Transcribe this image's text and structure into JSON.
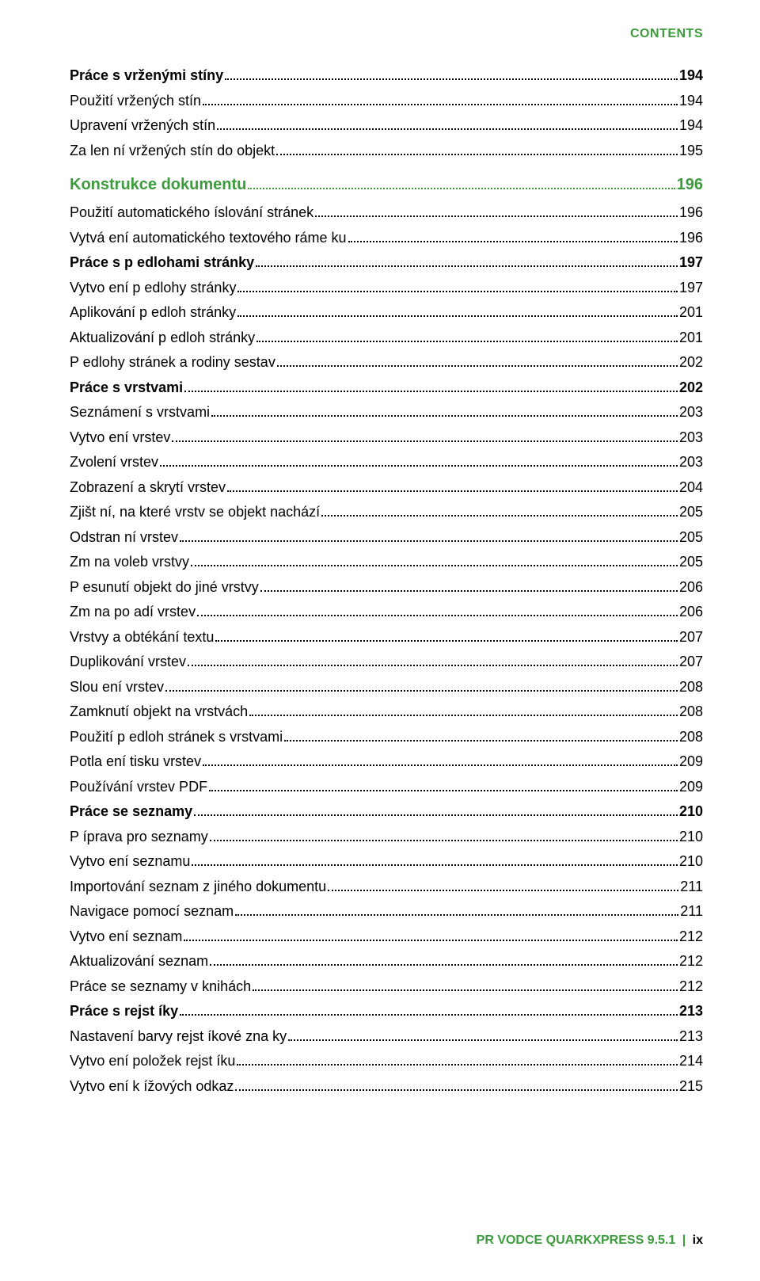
{
  "header": {
    "label": "CONTENTS"
  },
  "colors": {
    "accent": "#3c9b3c",
    "text": "#000000",
    "background": "#ffffff",
    "dot": "#000000"
  },
  "typography": {
    "body_fontsize": 18,
    "heading_fontsize": 20,
    "header_fontsize": 16,
    "footer_fontsize": 16,
    "font_family": "Arial, Helvetica, sans-serif",
    "line_height": 1.75
  },
  "toc": [
    {
      "label": "Práce s vrženými stíny",
      "page": "194",
      "style": "bold"
    },
    {
      "label": "Použití vržených stín",
      "page": "194",
      "style": "normal"
    },
    {
      "label": "Upravení vržených stín",
      "page": "194",
      "style": "normal"
    },
    {
      "label": "Za len ní vržených stín  do objekt",
      "page": "195",
      "style": "normal"
    },
    {
      "label": "Konstrukce dokumentu",
      "page": "196",
      "style": "heading"
    },
    {
      "label": "Použití automatického  íslování stránek",
      "page": "196",
      "style": "normal"
    },
    {
      "label": "Vytvá ení automatického textového ráme ku",
      "page": "196",
      "style": "normal"
    },
    {
      "label": "Práce s p edlohami stránky",
      "page": "197",
      "style": "bold"
    },
    {
      "label": "Vytvo ení p edlohy stránky",
      "page": "197",
      "style": "normal"
    },
    {
      "label": "Aplikování p edloh stránky",
      "page": "201",
      "style": "normal"
    },
    {
      "label": "Aktualizování p edloh stránky",
      "page": "201",
      "style": "normal"
    },
    {
      "label": "P edlohy stránek a rodiny sestav",
      "page": "202",
      "style": "normal"
    },
    {
      "label": "Práce s vrstvami",
      "page": "202",
      "style": "bold"
    },
    {
      "label": "Seznámení s vrstvami",
      "page": "203",
      "style": "normal"
    },
    {
      "label": "Vytvo ení vrstev",
      "page": "203",
      "style": "normal"
    },
    {
      "label": "Zvolení vrstev",
      "page": "203",
      "style": "normal"
    },
    {
      "label": "Zobrazení a skrytí vrstev",
      "page": "204",
      "style": "normal"
    },
    {
      "label": "Zjišt ní, na které vrstv  se objekt nachází",
      "page": "205",
      "style": "normal"
    },
    {
      "label": "Odstran ní vrstev",
      "page": "205",
      "style": "normal"
    },
    {
      "label": "Zm na voleb vrstvy",
      "page": "205",
      "style": "normal"
    },
    {
      "label": "P esunutí objekt  do jiné vrstvy",
      "page": "206",
      "style": "normal"
    },
    {
      "label": "Zm na po adí vrstev",
      "page": "206",
      "style": "normal"
    },
    {
      "label": "Vrstvy a obtékání textu",
      "page": "207",
      "style": "normal"
    },
    {
      "label": "Duplikování vrstev",
      "page": "207",
      "style": "normal"
    },
    {
      "label": "Slou ení vrstev",
      "page": "208",
      "style": "normal"
    },
    {
      "label": "Zamknutí objekt  na vrstvách",
      "page": "208",
      "style": "normal"
    },
    {
      "label": "Použití p edloh stránek s vrstvami",
      "page": "208",
      "style": "normal"
    },
    {
      "label": "Potla ení tisku vrstev",
      "page": "209",
      "style": "normal"
    },
    {
      "label": "Používání vrstev PDF",
      "page": "209",
      "style": "normal"
    },
    {
      "label": "Práce se seznamy",
      "page": "210",
      "style": "bold"
    },
    {
      "label": "P íprava pro seznamy",
      "page": "210",
      "style": "normal"
    },
    {
      "label": "Vytvo ení seznamu",
      "page": "210",
      "style": "normal"
    },
    {
      "label": "Importování seznam  z jiného dokumentu",
      "page": "211",
      "style": "normal"
    },
    {
      "label": "Navigace pomocí seznam",
      "page": "211",
      "style": "normal"
    },
    {
      "label": "Vytvo ení seznam",
      "page": "212",
      "style": "normal"
    },
    {
      "label": "Aktualizování seznam",
      "page": "212",
      "style": "normal"
    },
    {
      "label": "Práce se seznamy v knihách",
      "page": "212",
      "style": "normal"
    },
    {
      "label": "Práce s rejst íky",
      "page": "213",
      "style": "bold"
    },
    {
      "label": "Nastavení barvy rejst íkové zna ky",
      "page": "213",
      "style": "normal"
    },
    {
      "label": "Vytvo ení položek rejst íku",
      "page": "214",
      "style": "normal"
    },
    {
      "label": "Vytvo ení k ížových odkaz",
      "page": "215",
      "style": "normal"
    }
  ],
  "footer": {
    "title": "PR VODCE QUARKXPRESS 9.5.1",
    "separator": "|",
    "page_number": "ix"
  }
}
